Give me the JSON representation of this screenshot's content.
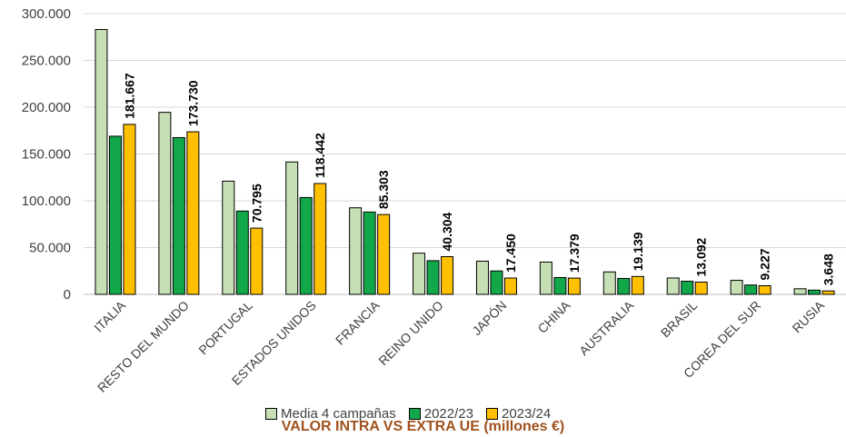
{
  "chart_data": {
    "type": "bar",
    "title": "VALOR INTRA VS EXTRA UE (millones €)",
    "categories": [
      "ITALIA",
      "RESTO DEL MUNDO",
      "PORTUGAL",
      "ESTADOS UNIDOS",
      "FRANCIA",
      "REINO UNIDO",
      "JAPÓN",
      "CHINA",
      "AUSTRALIA",
      "BRASIL",
      "COREA DEL SUR",
      "RUSIA"
    ],
    "series": [
      {
        "name": "Media 4 campañas",
        "color": "#c6dfb4",
        "values": [
          283000,
          194500,
          121000,
          141500,
          92500,
          44000,
          35500,
          34500,
          24000,
          17500,
          15000,
          6000
        ]
      },
      {
        "name": "2022/23",
        "color": "#12a84a",
        "values": [
          169000,
          167500,
          89000,
          103500,
          88000,
          36000,
          25000,
          18000,
          17000,
          14000,
          10000,
          4500
        ]
      },
      {
        "name": "2023/24",
        "color": "#ffc000",
        "values": [
          181667,
          173730,
          70795,
          118442,
          85303,
          40304,
          17450,
          17379,
          19139,
          13092,
          9227,
          3648
        ]
      }
    ],
    "data_labels": [
      "181.667",
      "173.730",
      "70.795",
      "118.442",
      "85.303",
      "40.304",
      "17.450",
      "17.379",
      "19.139",
      "13.092",
      "9.227",
      "3.648"
    ],
    "y_ticks": [
      "0",
      "50.000",
      "100.000",
      "150.000",
      "200.000",
      "250.000",
      "300.000"
    ],
    "ylim": [
      0,
      300000
    ],
    "grid": true,
    "legend_position": "bottom"
  }
}
